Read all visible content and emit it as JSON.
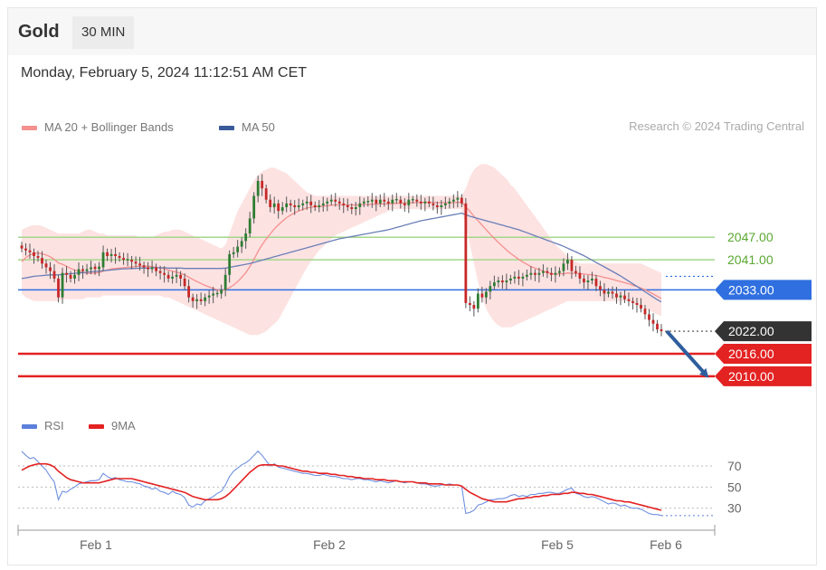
{
  "header": {
    "instrument": "Gold",
    "timeframe": "30 MIN"
  },
  "datetime": "Monday, February 5, 2024 11:12:51 AM CET",
  "legend_main": [
    {
      "label": "MA 20 + Bollinger Bands",
      "color": "#f4908e"
    },
    {
      "label": "MA 50",
      "color": "#3a5a9a"
    }
  ],
  "credit": "Research © 2024 Trading Central",
  "legend_rsi": [
    {
      "label": "RSI",
      "color": "#5b7fdb"
    },
    {
      "label": "9MA",
      "color": "#e32222"
    }
  ],
  "colors": {
    "up": "#2e7d32",
    "down": "#c62828",
    "bands": "#fde2e2",
    "ma20": "#f4908e",
    "ma50": "#6a7fb8",
    "resistance": "#a5d68b",
    "pivot": "#2f6fe0",
    "support": "#e32222",
    "last": "#333333"
  },
  "chart_data": [
    {
      "type": "candlestick",
      "title": "Gold",
      "timeframe": "30 MIN",
      "ylim": [
        2003,
        2068
      ],
      "x_ticks": [
        "Feb 1",
        "Feb 2",
        "Feb 5",
        "Feb 6"
      ],
      "levels": [
        {
          "value": 2047.0,
          "label": "2047.00",
          "kind": "resistance"
        },
        {
          "value": 2041.0,
          "label": "2041.00",
          "kind": "resistance"
        },
        {
          "value": 2033.0,
          "label": "2033.00",
          "kind": "pivot"
        },
        {
          "value": 2022.0,
          "label": "2022.00",
          "kind": "last"
        },
        {
          "value": 2016.0,
          "label": "2016.00",
          "kind": "support"
        },
        {
          "value": 2010.0,
          "label": "2010.00",
          "kind": "support"
        }
      ],
      "forecast_arrow": {
        "from": 2022.0,
        "to": 2010.0
      },
      "close": [
        2044,
        2043.5,
        2043,
        2042,
        2041.5,
        2040,
        2039,
        2038,
        2036,
        2031,
        2037.5,
        2037,
        2036,
        2037,
        2038.5,
        2038,
        2038.5,
        2039,
        2038.7,
        2039,
        2043,
        2042,
        2042.5,
        2042,
        2041.5,
        2041,
        2041,
        2040.5,
        2040,
        2039.5,
        2039,
        2038.5,
        2039,
        2038,
        2037.5,
        2037,
        2036,
        2036.5,
        2037,
        2036,
        2034,
        2031,
        2030,
        2030.5,
        2030,
        2031,
        2031.5,
        2032,
        2032,
        2033,
        2037,
        2042.5,
        2043,
        2044.5,
        2046,
        2048,
        2052,
        2058,
        2062,
        2060,
        2057,
        2055,
        2056,
        2054,
        2055,
        2056,
        2055.5,
        2055,
        2055.5,
        2056,
        2056.5,
        2055.5,
        2055,
        2055.5,
        2056,
        2056.5,
        2057,
        2056.5,
        2056,
        2055.5,
        2055,
        2054.5,
        2055,
        2056,
        2056.5,
        2056.5,
        2057,
        2056,
        2057,
        2056.5,
        2056,
        2057,
        2057,
        2056,
        2055.5,
        2057,
        2057,
        2056.5,
        2056,
        2056.5,
        2056,
        2055.5,
        2055,
        2055.5,
        2056,
        2056.5,
        2057,
        2057.5,
        2056,
        2029.5,
        2029,
        2028,
        2032,
        2031,
        2032.5,
        2034,
        2035,
        2035.5,
        2035,
        2035.5,
        2036,
        2036.5,
        2036,
        2036.5,
        2037,
        2037.5,
        2037,
        2037.5,
        2038,
        2037.5,
        2037,
        2037.5,
        2038,
        2040,
        2041,
        2038,
        2037.5,
        2036,
        2035,
        2035.5,
        2036,
        2034,
        2033,
        2032,
        2032.5,
        2032,
        2031,
        2031.5,
        2030.5,
        2030,
        2029.5,
        2029,
        2028,
        2026.5,
        2025,
        2024,
        2022.5,
        2022
      ],
      "ma20": [
        2040.5,
        2041.6,
        2042.3,
        2042.7,
        2042.8,
        2042.6,
        2042.3,
        2041.8,
        2041.1,
        2040.2,
        2039.8,
        2039.3,
        2038.7,
        2038.3,
        2038,
        2037.6,
        2037.4,
        2037.4,
        2037.5,
        2037.6,
        2038,
        2038.3,
        2038.6,
        2038.7,
        2038.8,
        2038.9,
        2039,
        2039.1,
        2039.2,
        2039.3,
        2039.3,
        2039.3,
        2039.2,
        2039,
        2038.8,
        2038.6,
        2038.3,
        2038,
        2037.7,
        2037.4,
        2037,
        2036.4,
        2035.8,
        2035.2,
        2034.7,
        2034.2,
        2033.8,
        2033.4,
        2033,
        2032.8,
        2033,
        2033.6,
        2034.3,
        2035.2,
        2036.3,
        2037.6,
        2039.2,
        2041.1,
        2043.2,
        2045,
        2046.5,
        2047.9,
        2049.2,
        2050.3,
        2051.3,
        2052.2,
        2052.9,
        2053.5,
        2054,
        2054.4,
        2054.8,
        2055,
        2055.1,
        2055.2,
        2055.3,
        2055.4,
        2055.5,
        2055.6,
        2055.6,
        2055.6,
        2055.6,
        2055.6,
        2055.6,
        2055.6,
        2055.7,
        2055.7,
        2055.8,
        2055.8,
        2055.9,
        2055.9,
        2055.9,
        2056,
        2056,
        2056.1,
        2056.1,
        2056.2,
        2056.2,
        2056.2,
        2056.3,
        2056.3,
        2056.3,
        2056.3,
        2056.2,
        2056.2,
        2056.2,
        2056.2,
        2056.2,
        2056.3,
        2056.3,
        2055.1,
        2053.9,
        2052.6,
        2051.4,
        2050.2,
        2049,
        2047.8,
        2046.7,
        2045.6,
        2044.6,
        2043.6,
        2042.7,
        2041.9,
        2041.1,
        2040.4,
        2039.8,
        2039.2,
        2038.8,
        2038.4,
        2038,
        2037.6,
        2037.3,
        2037.2,
        2037.2,
        2037.3,
        2037.5,
        2037.4,
        2037.4,
        2037.3,
        2037.2,
        2037.1,
        2037,
        2036.8,
        2036.6,
        2036.3,
        2036.1,
        2035.8,
        2035.5,
        2035.2,
        2034.9,
        2034.6,
        2034.2,
        2033.9,
        2033.5,
        2033,
        2032.5,
        2031.9,
        2031.3,
        2030.7
      ],
      "ma50": [
        2036,
        2036.2,
        2036.4,
        2036.6,
        2036.7,
        2036.8,
        2036.9,
        2037,
        2037,
        2037,
        2037.1,
        2037.2,
        2037.3,
        2037.4,
        2037.5,
        2037.6,
        2037.7,
        2037.8,
        2037.9,
        2038,
        2038.1,
        2038.2,
        2038.3,
        2038.4,
        2038.5,
        2038.6,
        2038.6,
        2038.7,
        2038.7,
        2038.8,
        2038.8,
        2038.8,
        2038.9,
        2038.9,
        2038.9,
        2038.9,
        2038.8,
        2038.8,
        2038.8,
        2038.8,
        2038.7,
        2038.7,
        2038.7,
        2038.7,
        2038.7,
        2038.7,
        2038.7,
        2038.7,
        2038.7,
        2038.7,
        2038.8,
        2039,
        2039.2,
        2039.4,
        2039.6,
        2039.8,
        2040,
        2040.3,
        2040.6,
        2040.9,
        2041.2,
        2041.5,
        2041.8,
        2042.1,
        2042.4,
        2042.7,
        2043,
        2043.3,
        2043.6,
        2043.9,
        2044.2,
        2044.5,
        2044.8,
        2045.1,
        2045.4,
        2045.7,
        2046,
        2046.3,
        2046.6,
        2046.8,
        2047,
        2047.2,
        2047.4,
        2047.6,
        2047.8,
        2048,
        2048.2,
        2048.4,
        2048.6,
        2048.8,
        2049,
        2049.3,
        2049.6,
        2049.9,
        2050.2,
        2050.5,
        2050.8,
        2051.1,
        2051.4,
        2051.6,
        2051.8,
        2052,
        2052.2,
        2052.4,
        2052.6,
        2052.8,
        2053,
        2053.2,
        2053.4,
        2053,
        2052.6,
        2052.3,
        2052,
        2051.7,
        2051.4,
        2051.1,
        2050.8,
        2050.5,
        2050.2,
        2049.9,
        2049.6,
        2049.3,
        2049,
        2048.6,
        2048.2,
        2047.8,
        2047.4,
        2047,
        2046.6,
        2046.2,
        2045.8,
        2045.4,
        2045,
        2044.6,
        2044.1,
        2043.6,
        2043.1,
        2042.6,
        2042.1,
        2041.5,
        2040.9,
        2040.3,
        2039.7,
        2039.1,
        2038.5,
        2037.9,
        2037.3,
        2036.7,
        2036,
        2035.3,
        2034.6,
        2033.9,
        2033.2,
        2032.5,
        2031.8,
        2031.1,
        2030.4,
        2029.8
      ],
      "band_upper": [
        2049,
        2049.5,
        2050,
        2050.2,
        2050.2,
        2050,
        2049.5,
        2049,
        2048.5,
        2048,
        2048,
        2048,
        2048,
        2048,
        2048,
        2048.5,
        2049,
        2049,
        2048.5,
        2048,
        2048,
        2047.5,
        2047.5,
        2047.5,
        2047.5,
        2047.5,
        2047.5,
        2047.5,
        2047.5,
        2047,
        2047,
        2047,
        2047,
        2047.5,
        2048,
        2048.5,
        2048.5,
        2049,
        2049,
        2049,
        2048.5,
        2048,
        2047.5,
        2047,
        2046.5,
        2046,
        2045.5,
        2045,
        2044.5,
        2044,
        2045,
        2048,
        2051,
        2054,
        2056,
        2058,
        2060,
        2062,
        2063.5,
        2064.5,
        2065,
        2065.5,
        2065.5,
        2065,
        2064.5,
        2064,
        2063,
        2062,
        2061,
        2060,
        2059,
        2058.5,
        2058,
        2058,
        2058,
        2058,
        2058,
        2058,
        2058,
        2058,
        2058,
        2058,
        2058,
        2058,
        2058,
        2058,
        2058,
        2058,
        2058,
        2058,
        2058,
        2058,
        2058,
        2058,
        2058,
        2058,
        2058,
        2058,
        2058,
        2058,
        2058,
        2058,
        2058,
        2058,
        2058,
        2058,
        2058,
        2058,
        2058,
        2060,
        2063,
        2065,
        2066,
        2066.5,
        2066.5,
        2066,
        2065.5,
        2064.5,
        2063.5,
        2062.5,
        2061,
        2060,
        2058.5,
        2057,
        2055.5,
        2054,
        2052.5,
        2051,
        2049.5,
        2048,
        2046.5,
        2045,
        2044,
        2043,
        2042,
        2041,
        2040.5,
        2040,
        2040,
        2040,
        2040,
        2040,
        2040,
        2040,
        2040,
        2040,
        2040,
        2040,
        2040,
        2040,
        2040,
        2040,
        2040,
        2039.5,
        2039,
        2038.5,
        2038,
        2037.5
      ],
      "band_lower": [
        2032,
        2031,
        2030.5,
        2030,
        2030,
        2030,
        2030,
        2030,
        2030,
        2030,
        2030.5,
        2030.5,
        2030.5,
        2030.5,
        2030.5,
        2030.5,
        2031,
        2031,
        2031,
        2031,
        2031.5,
        2031.5,
        2031.5,
        2031.5,
        2031.5,
        2031.5,
        2031.5,
        2031.5,
        2031.5,
        2031.5,
        2031.5,
        2031.5,
        2031.5,
        2031.5,
        2031.5,
        2031,
        2031,
        2030.5,
        2030,
        2029.5,
        2029,
        2028.5,
        2028,
        2027.5,
        2027,
        2026.5,
        2026,
        2025.5,
        2025,
        2024.5,
        2024,
        2023.5,
        2023,
        2022.5,
        2022,
        2021.5,
        2021,
        2021,
        2021,
        2021.5,
        2022,
        2023,
        2024,
        2025,
        2027,
        2029,
        2031,
        2033,
        2035,
        2037,
        2039,
        2040.5,
        2042,
        2043.5,
        2044.5,
        2045.5,
        2046.5,
        2047.5,
        2048,
        2048.5,
        2049,
        2049.5,
        2050,
        2050.5,
        2051,
        2051.5,
        2052,
        2052.5,
        2053,
        2053.5,
        2054,
        2054.5,
        2054.5,
        2054.5,
        2054.5,
        2054.5,
        2054.5,
        2054.5,
        2054.5,
        2054.5,
        2054.5,
        2054.5,
        2054.5,
        2054.5,
        2054.5,
        2054.5,
        2054.5,
        2054.5,
        2054.5,
        2050,
        2045,
        2040,
        2035,
        2031,
        2028,
        2026,
        2024.5,
        2023.5,
        2023,
        2023,
        2023,
        2023.5,
        2024,
        2024.5,
        2025,
        2025.5,
        2026,
        2026.5,
        2027,
        2027.5,
        2028,
        2028.5,
        2029,
        2029.5,
        2030,
        2030,
        2030,
        2030,
        2030,
        2030,
        2030,
        2030,
        2030,
        2030,
        2030,
        2030,
        2030,
        2030,
        2030,
        2030,
        2029.5,
        2029,
        2028.5,
        2028,
        2027.5,
        2027,
        2026.5,
        2026,
        2025.5
      ]
    },
    {
      "type": "line",
      "title": "RSI",
      "ylim": [
        10,
        100
      ],
      "y_ticks": [
        70,
        50,
        30
      ],
      "x_ticks": [
        "Feb 1",
        "Feb 2",
        "Feb 5",
        "Feb 6"
      ],
      "series": [
        {
          "name": "RSI",
          "values": [
            84,
            80,
            77,
            78,
            74,
            70,
            66,
            60,
            55,
            38,
            46,
            45,
            48,
            50,
            53,
            54,
            55,
            56,
            56,
            57,
            63,
            60,
            58,
            59,
            57,
            56,
            55,
            55,
            54,
            53,
            51,
            50,
            48,
            49,
            46,
            45,
            43,
            46,
            44,
            43,
            40,
            33,
            31,
            34,
            33,
            37,
            39,
            41,
            44,
            46,
            52,
            60,
            65,
            68,
            71,
            73,
            76,
            80,
            84,
            80,
            75,
            70,
            72,
            69,
            68,
            67,
            66,
            65,
            64,
            63,
            63,
            62,
            61,
            61,
            62,
            61,
            60,
            60,
            59,
            58,
            58,
            57,
            58,
            58,
            57,
            57,
            56,
            55,
            56,
            55,
            54,
            55,
            56,
            55,
            54,
            55,
            55,
            54,
            53,
            53,
            52,
            51,
            51,
            52,
            52,
            53,
            52,
            52,
            51,
            25,
            26,
            28,
            33,
            34,
            36,
            38,
            38,
            39,
            39,
            40,
            42,
            43,
            41,
            42,
            41,
            43,
            43,
            44,
            44,
            45,
            45,
            44,
            44,
            46,
            48,
            49,
            44,
            43,
            41,
            40,
            41,
            40,
            38,
            36,
            34,
            35,
            34,
            32,
            33,
            31,
            30,
            30,
            29,
            27,
            25,
            24,
            24,
            23
          ]
        },
        {
          "name": "9MA",
          "values": [
            66,
            68,
            70,
            71,
            72,
            72,
            72,
            71,
            69,
            65,
            62,
            59,
            57,
            56,
            55,
            54,
            54,
            54,
            54,
            54,
            55,
            56,
            57,
            58,
            58,
            58,
            58,
            58,
            57,
            56,
            55,
            54,
            53,
            52,
            51,
            50,
            49,
            48,
            47,
            46,
            45,
            43,
            41,
            40,
            39,
            38,
            38,
            38,
            38,
            39,
            41,
            44,
            48,
            52,
            56,
            60,
            64,
            67,
            70,
            71,
            71,
            71,
            71,
            70,
            70,
            69,
            68,
            67,
            66,
            65,
            65,
            64,
            64,
            63,
            63,
            63,
            62,
            62,
            61,
            61,
            60,
            60,
            59,
            59,
            58,
            58,
            58,
            57,
            57,
            57,
            56,
            56,
            56,
            55,
            55,
            55,
            55,
            54,
            54,
            54,
            53,
            53,
            53,
            53,
            52,
            52,
            52,
            52,
            51,
            48,
            45,
            43,
            41,
            39,
            38,
            37,
            36,
            36,
            36,
            36,
            37,
            38,
            39,
            39,
            40,
            40,
            41,
            41,
            42,
            42,
            43,
            43,
            43,
            44,
            44,
            45,
            45,
            44,
            44,
            43,
            43,
            42,
            41,
            40,
            39,
            38,
            37,
            37,
            36,
            36,
            35,
            34,
            33,
            32,
            31,
            30,
            29,
            28
          ]
        }
      ]
    }
  ]
}
